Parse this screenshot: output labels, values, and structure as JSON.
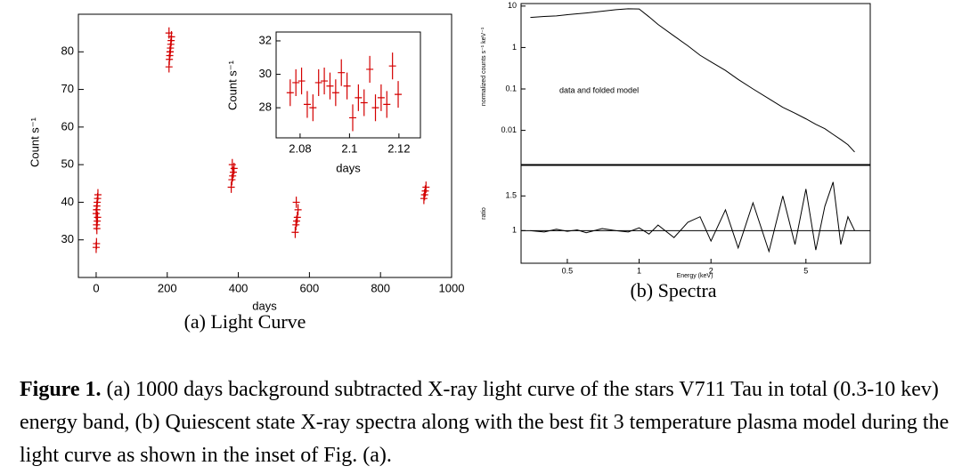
{
  "chart_data": [
    {
      "type": "scatter",
      "xlabel": "days",
      "ylabel": "Count s⁻¹",
      "x": [
        0,
        1,
        2,
        3,
        4,
        0,
        1,
        2,
        3,
        4,
        5,
        1,
        2,
        205,
        206,
        207,
        208,
        209,
        210,
        211,
        212,
        205,
        208,
        380,
        382,
        384,
        386,
        388,
        383,
        560,
        562,
        564,
        566,
        568,
        563,
        922,
        924,
        926,
        928
      ],
      "values": [
        28,
        29,
        33,
        35,
        36,
        37,
        38,
        39,
        40,
        41,
        42,
        34,
        38,
        76,
        78,
        79,
        80,
        81,
        82,
        83,
        84,
        85,
        80,
        44,
        46,
        47,
        48,
        49,
        50,
        32,
        34,
        35,
        36,
        38,
        40,
        41,
        42,
        43,
        44
      ],
      "yerr": 1.5,
      "color": "#d40000",
      "xlim": [
        -50,
        1000
      ],
      "ylim": [
        20,
        90
      ],
      "xticks": [
        0,
        200,
        400,
        600,
        800,
        1000
      ],
      "yticks": [
        30,
        40,
        50,
        60,
        70,
        80
      ]
    },
    {
      "type": "scatter",
      "xlabel": "days",
      "ylabel": "Count s⁻¹",
      "x": [
        2.076,
        2.0783,
        2.0806,
        2.0829,
        2.0852,
        2.0875,
        2.0898,
        2.0921,
        2.0944,
        2.0967,
        2.099,
        2.1013,
        2.1036,
        2.1059,
        2.1082,
        2.1105,
        2.1128,
        2.1151,
        2.1174,
        2.1197
      ],
      "values": [
        28.9,
        29.5,
        29.6,
        28.2,
        28,
        29.5,
        29.6,
        29.3,
        28.9,
        30.1,
        29.3,
        27.4,
        28.6,
        28.3,
        30.3,
        28,
        28.6,
        28.2,
        30.5,
        28.8
      ],
      "yerr": 0.8,
      "color": "#d40000",
      "xlim": [
        2.0703,
        2.1287
      ],
      "ylim": [
        26.2,
        32.53
      ],
      "xticks": [
        2.08,
        2.1,
        2.12
      ],
      "yticks": [
        28,
        30,
        32
      ]
    },
    {
      "type": "line",
      "ylabel": "normalized counts s⁻¹ keV⁻¹",
      "annotation": "data and folded model",
      "x": [
        0.35,
        0.4,
        0.45,
        0.5,
        0.55,
        0.6,
        0.7,
        0.8,
        0.9,
        1.0,
        1.1,
        1.2,
        1.4,
        1.6,
        1.8,
        2.0,
        2.3,
        2.6,
        3.0,
        3.5,
        4.0,
        4.5,
        5.0,
        5.5,
        6.0,
        6.5,
        7.0,
        7.5,
        8.0
      ],
      "values": [
        5.3,
        5.6,
        5.8,
        6.2,
        6.5,
        6.8,
        7.5,
        8.2,
        8.6,
        8.5,
        5.5,
        3.6,
        1.9,
        1.1,
        0.65,
        0.45,
        0.28,
        0.17,
        0.1,
        0.058,
        0.036,
        0.026,
        0.019,
        0.014,
        0.011,
        0.008,
        0.006,
        0.0045,
        0.003
      ],
      "color": "#000000",
      "xlog": true,
      "ylog": true,
      "xlim": [
        0.32,
        9.3
      ],
      "ylim": [
        0.0015,
        11.5
      ],
      "yticks": [
        0.01,
        0.1,
        1,
        10
      ]
    },
    {
      "type": "line",
      "xlabel": "Energy (keV)",
      "ylabel": "ratio",
      "x": [
        0.35,
        0.4,
        0.45,
        0.5,
        0.55,
        0.6,
        0.7,
        0.8,
        0.9,
        1.0,
        1.1,
        1.2,
        1.4,
        1.6,
        1.8,
        2.0,
        2.3,
        2.6,
        3.0,
        3.5,
        4.0,
        4.5,
        5.0,
        5.5,
        6.0,
        6.5,
        7.0,
        7.5,
        8.0
      ],
      "values": [
        1.0,
        0.98,
        1.02,
        0.99,
        1.01,
        0.97,
        1.03,
        1.0,
        0.98,
        1.04,
        0.95,
        1.08,
        0.9,
        1.12,
        1.2,
        0.85,
        1.3,
        0.75,
        1.4,
        0.7,
        1.5,
        0.8,
        1.6,
        0.72,
        1.35,
        1.7,
        0.8,
        1.2,
        1.0
      ],
      "reference_line": 1,
      "color": "#000000",
      "xlog": true,
      "xlim": [
        0.32,
        9.3
      ],
      "ylim": [
        0.53,
        1.94
      ],
      "xticks": [
        0.5,
        1,
        2,
        5
      ],
      "yticks": [
        1,
        1.5
      ]
    }
  ],
  "subcaptions": [
    "(a) Light Curve",
    "(b) Spectra"
  ],
  "caption": {
    "label": "Figure 1.",
    "text": "(a) 1000 days background subtracted X-ray light curve of the stars V711 Tau in total (0.3-10 kev) energy band, (b) Quiescent state X-ray spectra along with the best fit 3 temperature plasma model during the light curve as shown in the inset of Fig. (a)."
  }
}
